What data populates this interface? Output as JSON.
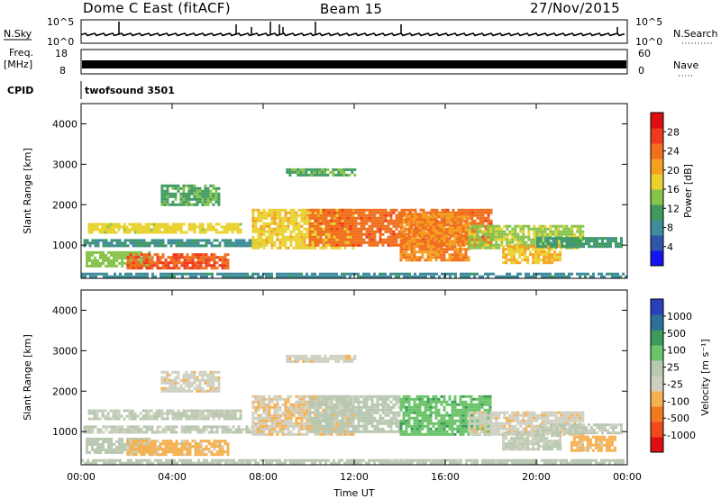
{
  "header": {
    "station": "Dome C East (fitACF)",
    "beam": "Beam 15",
    "date": "27/Nov/2015"
  },
  "strips": {
    "nsky_label": "N.Sky",
    "nsky_ticks": [
      "10^5",
      "10^0"
    ],
    "nsearch_label": "N.Search",
    "nsearch_ticks": [
      "10^5",
      "10^0"
    ],
    "freq_label_1": "Freq.",
    "freq_label_2": "[MHz]",
    "freq_ticks": [
      "18",
      "8"
    ],
    "nave_label": "Nave",
    "nave_ticks": [
      "60",
      "0"
    ],
    "cpid_label": "CPID",
    "cpid_value": "twofsound 3501"
  },
  "colors": {
    "power_scale": [
      "#1414f0",
      "#2f55a8",
      "#3f8c9c",
      "#3f9a60",
      "#86c34a",
      "#e9d12e",
      "#f5a020",
      "#f0701e",
      "#ee3a1e",
      "#dc1010"
    ],
    "velocity_scale": [
      "#dc1010",
      "#ee4a1e",
      "#f07a1e",
      "#f5b050",
      "#cfcfc0",
      "#b8c8b0",
      "#6cc46a",
      "#3c9a5a",
      "#2e6e9a",
      "#2a40b8"
    ]
  },
  "chart_data": [
    {
      "type": "heatmap",
      "panel": "power",
      "x": [
        "00:00",
        "04:00",
        "08:00",
        "12:00",
        "16:00",
        "20:00",
        "00:00"
      ],
      "x_hours": [
        0,
        4,
        8,
        12,
        16,
        20,
        24
      ],
      "ylabel": "Slant Range [km]",
      "yticks": [
        1000,
        2000,
        3000,
        4000
      ],
      "ylim": [
        180,
        4500
      ],
      "colorbar_label": "Power [dB]",
      "colorbar_ticks": [
        "28",
        "24",
        "20",
        "16",
        "12",
        "8",
        "4"
      ],
      "clim": [
        0,
        32
      ],
      "regions": [
        {
          "t0": 0.1,
          "t1": 8.0,
          "r0": 950,
          "r1": 1150,
          "v": 9
        },
        {
          "t0": 0.3,
          "t1": 7.0,
          "r0": 1300,
          "r1": 1550,
          "v": 17
        },
        {
          "t0": 0.2,
          "t1": 3.0,
          "r0": 500,
          "r1": 850,
          "v": 14
        },
        {
          "t0": 2.0,
          "t1": 6.5,
          "r0": 400,
          "r1": 800,
          "v": 25
        },
        {
          "t0": 3.5,
          "t1": 6.0,
          "r0": 2000,
          "r1": 2500,
          "v": 12
        },
        {
          "t0": 7.5,
          "t1": 12.0,
          "r0": 900,
          "r1": 1900,
          "v": 18
        },
        {
          "t0": 10.0,
          "t1": 18.0,
          "r0": 1000,
          "r1": 1900,
          "v": 24
        },
        {
          "t0": 14.0,
          "t1": 17.0,
          "r0": 600,
          "r1": 1800,
          "v": 22
        },
        {
          "t0": 17.0,
          "t1": 22.0,
          "r0": 950,
          "r1": 1500,
          "v": 15
        },
        {
          "t0": 18.5,
          "t1": 21.0,
          "r0": 550,
          "r1": 1000,
          "v": 19
        },
        {
          "t0": 20.0,
          "t1": 23.8,
          "r0": 950,
          "r1": 1200,
          "v": 10
        },
        {
          "t0": 0.0,
          "t1": 24.0,
          "r0": 190,
          "r1": 320,
          "v": 8
        },
        {
          "t0": 9.0,
          "t1": 12.0,
          "r0": 2700,
          "r1": 2900,
          "v": 12
        }
      ]
    },
    {
      "type": "heatmap",
      "panel": "velocity",
      "x": [
        "00:00",
        "04:00",
        "08:00",
        "12:00",
        "16:00",
        "20:00",
        "00:00"
      ],
      "x_hours": [
        0,
        4,
        8,
        12,
        16,
        20,
        24
      ],
      "xlabel": "Time UT",
      "ylabel": "Slant Range [km]",
      "yticks": [
        1000,
        2000,
        3000,
        4000
      ],
      "ylim": [
        180,
        4500
      ],
      "colorbar_label": "Velocity [m s⁻¹]",
      "colorbar_ticks": [
        "1000",
        "500",
        "100",
        "25",
        "-25",
        "-100",
        "-500",
        "-1000"
      ],
      "clim": [
        -1000,
        1000
      ],
      "regions": [
        {
          "t0": 0.1,
          "t1": 8.0,
          "r0": 950,
          "r1": 1150,
          "v": 5
        },
        {
          "t0": 0.3,
          "t1": 7.0,
          "r0": 1300,
          "r1": 1550,
          "v": 10
        },
        {
          "t0": 0.2,
          "t1": 3.0,
          "r0": 500,
          "r1": 850,
          "v": 80
        },
        {
          "t0": 2.0,
          "t1": 6.5,
          "r0": 400,
          "r1": 800,
          "v": -300
        },
        {
          "t0": 3.5,
          "t1": 6.0,
          "r0": 2000,
          "r1": 2500,
          "v": -150
        },
        {
          "t0": 7.5,
          "t1": 12.0,
          "r0": 900,
          "r1": 1900,
          "v": -200
        },
        {
          "t0": 10.0,
          "t1": 14.0,
          "r0": 1000,
          "r1": 1900,
          "v": 60
        },
        {
          "t0": 14.0,
          "t1": 18.0,
          "r0": 900,
          "r1": 1900,
          "v": 300
        },
        {
          "t0": 17.0,
          "t1": 22.0,
          "r0": 950,
          "r1": 1500,
          "v": -150
        },
        {
          "t0": 18.5,
          "t1": 21.0,
          "r0": 550,
          "r1": 1000,
          "v": 5
        },
        {
          "t0": 20.0,
          "t1": 23.8,
          "r0": 950,
          "r1": 1200,
          "v": 5
        },
        {
          "t0": 21.5,
          "t1": 23.5,
          "r0": 550,
          "r1": 900,
          "v": -300
        },
        {
          "t0": 0.0,
          "t1": 24.0,
          "r0": 190,
          "r1": 320,
          "v": 60
        },
        {
          "t0": 9.0,
          "t1": 12.0,
          "r0": 2700,
          "r1": 2900,
          "v": -150
        }
      ]
    }
  ]
}
